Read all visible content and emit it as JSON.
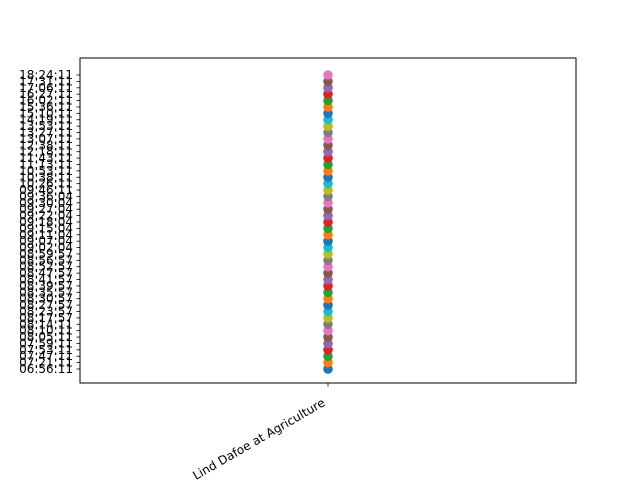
{
  "chart_data": {
    "type": "scatter",
    "title": "",
    "xlabel": "",
    "ylabel": "",
    "grid": false,
    "legend": "none",
    "categories": [
      "Lind Dafoe at Agriculture"
    ],
    "y_ticks": [
      "06:56:11",
      "07:21:11",
      "07:47:11",
      "07:53:11",
      "07:59:11",
      "08:05:11",
      "08:10:11",
      "08:14:11",
      "08:17:57",
      "08:23:57",
      "08:27:57",
      "08:30:57",
      "08:35:57",
      "08:39:57",
      "08:41:57",
      "08:47:57",
      "08:52:57",
      "08:56:57",
      "08:59:57",
      "09:02:04",
      "09:07:04",
      "09:11:04",
      "09:15:04",
      "09:18:04",
      "09:22:04",
      "09:27:04",
      "09:30:04",
      "09:36:04",
      "09:46:11",
      "10:26:11",
      "10:38:11",
      "10:53:11",
      "11:13:11",
      "11:43:11",
      "12:18:11",
      "12:38:11",
      "13:07:11",
      "13:27:11",
      "13:53:11",
      "14:19:11",
      "15:10:11",
      "15:36:11",
      "16:02:11",
      "16:27:11",
      "17:06:11",
      "17:31:11",
      "18:24:11"
    ],
    "y_tick_labels_shown": [
      "06:56:11",
      "07:21:11",
      "07:47:11",
      "07:53:11",
      "07:59:11",
      "08:05:11",
      "08:10:11",
      "08:14:11",
      "08:17:57",
      "08:23:57",
      "08:27:57",
      "08:30:57",
      "08:35:57",
      "08:39:57",
      "08:41:57",
      "08:47:57",
      "08:52:57",
      "08:56:57",
      "08:59:57",
      "09:02:04",
      "09:07:04",
      "09:11:04",
      "09:15:04",
      "09:18:04",
      "09:22:04",
      "09:27:04",
      "09:30:04",
      "09:36:04",
      "09:46:11",
      "10:26:11",
      "10:38:11",
      "10:53:11",
      "11:13:11",
      "11:43:11",
      "12:18:11",
      "12:38:11",
      "13:07:11",
      "13:27:11",
      "13:53:11",
      "14:19:11",
      "15:10:11",
      "15:36:11",
      "16:02:11",
      "16:27:11",
      "17:06:11",
      "17:31:11",
      "18:24:11"
    ],
    "points": [
      {
        "x": "Lind Dafoe at Agriculture",
        "y": "06:56:11"
      },
      {
        "x": "Lind Dafoe at Agriculture",
        "y": "07:21:11"
      },
      {
        "x": "Lind Dafoe at Agriculture",
        "y": "07:47:11"
      },
      {
        "x": "Lind Dafoe at Agriculture",
        "y": "07:53:11"
      },
      {
        "x": "Lind Dafoe at Agriculture",
        "y": "07:59:11"
      },
      {
        "x": "Lind Dafoe at Agriculture",
        "y": "08:05:11"
      },
      {
        "x": "Lind Dafoe at Agriculture",
        "y": "08:10:11"
      },
      {
        "x": "Lind Dafoe at Agriculture",
        "y": "08:14:11"
      },
      {
        "x": "Lind Dafoe at Agriculture",
        "y": "08:17:57"
      },
      {
        "x": "Lind Dafoe at Agriculture",
        "y": "08:23:57"
      },
      {
        "x": "Lind Dafoe at Agriculture",
        "y": "08:27:57"
      },
      {
        "x": "Lind Dafoe at Agriculture",
        "y": "08:30:57"
      },
      {
        "x": "Lind Dafoe at Agriculture",
        "y": "08:35:57"
      },
      {
        "x": "Lind Dafoe at Agriculture",
        "y": "08:39:57"
      },
      {
        "x": "Lind Dafoe at Agriculture",
        "y": "08:41:57"
      },
      {
        "x": "Lind Dafoe at Agriculture",
        "y": "08:47:57"
      },
      {
        "x": "Lind Dafoe at Agriculture",
        "y": "08:52:57"
      },
      {
        "x": "Lind Dafoe at Agriculture",
        "y": "08:56:57"
      },
      {
        "x": "Lind Dafoe at Agriculture",
        "y": "08:59:57"
      },
      {
        "x": "Lind Dafoe at Agriculture",
        "y": "09:02:04"
      },
      {
        "x": "Lind Dafoe at Agriculture",
        "y": "09:07:04"
      },
      {
        "x": "Lind Dafoe at Agriculture",
        "y": "09:11:04"
      },
      {
        "x": "Lind Dafoe at Agriculture",
        "y": "09:15:04"
      },
      {
        "x": "Lind Dafoe at Agriculture",
        "y": "09:18:04"
      },
      {
        "x": "Lind Dafoe at Agriculture",
        "y": "09:22:04"
      },
      {
        "x": "Lind Dafoe at Agriculture",
        "y": "09:27:04"
      },
      {
        "x": "Lind Dafoe at Agriculture",
        "y": "09:30:04"
      },
      {
        "x": "Lind Dafoe at Agriculture",
        "y": "09:36:04"
      },
      {
        "x": "Lind Dafoe at Agriculture",
        "y": "09:46:11"
      },
      {
        "x": "Lind Dafoe at Agriculture",
        "y": "10:26:11"
      },
      {
        "x": "Lind Dafoe at Agriculture",
        "y": "10:38:11"
      },
      {
        "x": "Lind Dafoe at Agriculture",
        "y": "10:53:11"
      },
      {
        "x": "Lind Dafoe at Agriculture",
        "y": "11:13:11"
      },
      {
        "x": "Lind Dafoe at Agriculture",
        "y": "11:43:11"
      },
      {
        "x": "Lind Dafoe at Agriculture",
        "y": "12:18:11"
      },
      {
        "x": "Lind Dafoe at Agriculture",
        "y": "12:38:11"
      },
      {
        "x": "Lind Dafoe at Agriculture",
        "y": "13:07:11"
      },
      {
        "x": "Lind Dafoe at Agriculture",
        "y": "13:27:11"
      },
      {
        "x": "Lind Dafoe at Agriculture",
        "y": "13:53:11"
      },
      {
        "x": "Lind Dafoe at Agriculture",
        "y": "14:19:11"
      },
      {
        "x": "Lind Dafoe at Agriculture",
        "y": "15:10:11"
      },
      {
        "x": "Lind Dafoe at Agriculture",
        "y": "15:36:11"
      },
      {
        "x": "Lind Dafoe at Agriculture",
        "y": "16:02:11"
      },
      {
        "x": "Lind Dafoe at Agriculture",
        "y": "16:27:11"
      },
      {
        "x": "Lind Dafoe at Agriculture",
        "y": "17:06:11"
      },
      {
        "x": "Lind Dafoe at Agriculture",
        "y": "17:31:11"
      },
      {
        "x": "Lind Dafoe at Agriculture",
        "y": "18:24:11"
      }
    ],
    "colors": [
      "#1f77b4",
      "#ff7f0e",
      "#2ca02c",
      "#d62728",
      "#9467bd",
      "#8c564b",
      "#e377c2",
      "#7f7f7f",
      "#bcbd22",
      "#17becf"
    ]
  }
}
